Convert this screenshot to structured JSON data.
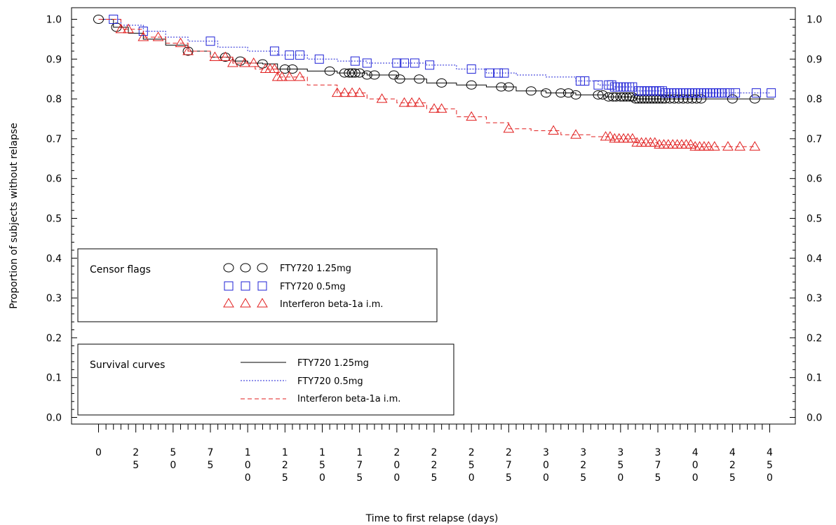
{
  "chart_data": {
    "type": "line",
    "title": "",
    "xlabel": "Time to first relapse (days)",
    "ylabel": "Proportion of subjects without relapse",
    "xlim": [
      -15,
      465
    ],
    "ylim": [
      -0.01,
      1.01
    ],
    "x_ticks": [
      {
        "value": 0,
        "label": "0"
      },
      {
        "value": 25,
        "label": "25"
      },
      {
        "value": 50,
        "label": "50"
      },
      {
        "value": 75,
        "label": "75"
      },
      {
        "value": 100,
        "label": "100"
      },
      {
        "value": 125,
        "label": "125"
      },
      {
        "value": 150,
        "label": "150"
      },
      {
        "value": 175,
        "label": "175"
      },
      {
        "value": 200,
        "label": "200"
      },
      {
        "value": 225,
        "label": "225"
      },
      {
        "value": 250,
        "label": "250"
      },
      {
        "value": 275,
        "label": "275"
      },
      {
        "value": 300,
        "label": "300"
      },
      {
        "value": 325,
        "label": "325"
      },
      {
        "value": 350,
        "label": "350"
      },
      {
        "value": 375,
        "label": "375"
      },
      {
        "value": 400,
        "label": "400"
      },
      {
        "value": 425,
        "label": "425"
      },
      {
        "value": 450,
        "label": "450"
      }
    ],
    "y_ticks": [
      {
        "value": 0.0,
        "label": "0.0"
      },
      {
        "value": 0.1,
        "label": "0.1"
      },
      {
        "value": 0.2,
        "label": "0.2"
      },
      {
        "value": 0.3,
        "label": "0.3"
      },
      {
        "value": 0.4,
        "label": "0.4"
      },
      {
        "value": 0.5,
        "label": "0.5"
      },
      {
        "value": 0.6,
        "label": "0.6"
      },
      {
        "value": 0.7,
        "label": "0.7"
      },
      {
        "value": 0.8,
        "label": "0.8"
      },
      {
        "value": 0.9,
        "label": "0.9"
      },
      {
        "value": 1.0,
        "label": "1.0"
      }
    ],
    "series": [
      {
        "name": "FTY720 1.25mg",
        "color": "#000000",
        "line": "solid",
        "marker": "circle",
        "points": [
          [
            0,
            1.0
          ],
          [
            10,
            0.98
          ],
          [
            20,
            0.965
          ],
          [
            30,
            0.95
          ],
          [
            45,
            0.935
          ],
          [
            60,
            0.92
          ],
          [
            75,
            0.905
          ],
          [
            90,
            0.895
          ],
          [
            100,
            0.89
          ],
          [
            110,
            0.888
          ],
          [
            120,
            0.875
          ],
          [
            140,
            0.87
          ],
          [
            160,
            0.865
          ],
          [
            180,
            0.86
          ],
          [
            200,
            0.85
          ],
          [
            220,
            0.84
          ],
          [
            240,
            0.835
          ],
          [
            260,
            0.83
          ],
          [
            280,
            0.82
          ],
          [
            300,
            0.815
          ],
          [
            320,
            0.81
          ],
          [
            340,
            0.805
          ],
          [
            360,
            0.8
          ],
          [
            380,
            0.8
          ],
          [
            400,
            0.8
          ],
          [
            420,
            0.8
          ],
          [
            440,
            0.8
          ],
          [
            453,
            0.8
          ]
        ],
        "censor_x": [
          0,
          12,
          60,
          85,
          95,
          110,
          125,
          130,
          155,
          165,
          168,
          170,
          172,
          175,
          180,
          185,
          198,
          202,
          215,
          230,
          250,
          270,
          275,
          290,
          300,
          310,
          315,
          320,
          335,
          338,
          342,
          345,
          347,
          350,
          352,
          354,
          356,
          358,
          360,
          362,
          364,
          366,
          368,
          370,
          372,
          374,
          376,
          378,
          380,
          383,
          386,
          389,
          392,
          395,
          398,
          401,
          404,
          425,
          440
        ]
      },
      {
        "name": "FTY720 0.5mg",
        "color": "#1f22d6",
        "line": "dotted",
        "marker": "square",
        "points": [
          [
            0,
            1.0
          ],
          [
            15,
            0.985
          ],
          [
            30,
            0.97
          ],
          [
            45,
            0.955
          ],
          [
            60,
            0.945
          ],
          [
            80,
            0.93
          ],
          [
            100,
            0.92
          ],
          [
            120,
            0.91
          ],
          [
            140,
            0.9
          ],
          [
            160,
            0.895
          ],
          [
            180,
            0.89
          ],
          [
            200,
            0.89
          ],
          [
            220,
            0.885
          ],
          [
            240,
            0.875
          ],
          [
            260,
            0.865
          ],
          [
            280,
            0.86
          ],
          [
            300,
            0.855
          ],
          [
            320,
            0.845
          ],
          [
            335,
            0.835
          ],
          [
            345,
            0.83
          ],
          [
            360,
            0.82
          ],
          [
            380,
            0.815
          ],
          [
            400,
            0.815
          ],
          [
            420,
            0.815
          ],
          [
            450,
            0.815
          ]
        ],
        "censor_x": [
          10,
          30,
          75,
          118,
          128,
          135,
          148,
          172,
          180,
          200,
          205,
          212,
          222,
          250,
          262,
          268,
          272,
          323,
          326,
          335,
          342,
          344,
          346,
          348,
          350,
          352,
          354,
          356,
          358,
          362,
          364,
          366,
          368,
          370,
          372,
          374,
          376,
          378,
          380,
          382,
          384,
          386,
          388,
          390,
          392,
          394,
          396,
          398,
          400,
          402,
          404,
          406,
          408,
          410,
          412,
          414,
          416,
          418,
          420,
          423,
          427,
          441,
          451
        ]
      },
      {
        "name": "Interferon beta-1a i.m.",
        "color": "#e11f1f",
        "line": "dashed",
        "marker": "triangle",
        "points": [
          [
            0,
            1.0
          ],
          [
            15,
            0.975
          ],
          [
            30,
            0.955
          ],
          [
            45,
            0.94
          ],
          [
            60,
            0.92
          ],
          [
            75,
            0.905
          ],
          [
            90,
            0.89
          ],
          [
            105,
            0.875
          ],
          [
            120,
            0.855
          ],
          [
            140,
            0.835
          ],
          [
            160,
            0.815
          ],
          [
            180,
            0.8
          ],
          [
            200,
            0.79
          ],
          [
            220,
            0.775
          ],
          [
            240,
            0.755
          ],
          [
            260,
            0.74
          ],
          [
            275,
            0.725
          ],
          [
            290,
            0.72
          ],
          [
            310,
            0.71
          ],
          [
            330,
            0.705
          ],
          [
            345,
            0.7
          ],
          [
            360,
            0.69
          ],
          [
            375,
            0.685
          ],
          [
            400,
            0.68
          ],
          [
            430,
            0.68
          ],
          [
            440,
            0.68
          ]
        ],
        "censor_x": [
          15,
          20,
          30,
          40,
          55,
          60,
          78,
          85,
          90,
          98,
          104,
          112,
          115,
          118,
          120,
          123,
          128,
          135,
          160,
          165,
          170,
          175,
          190,
          205,
          210,
          215,
          225,
          230,
          250,
          275,
          305,
          320,
          340,
          343,
          346,
          349,
          352,
          355,
          358,
          361,
          364,
          367,
          370,
          373,
          376,
          379,
          382,
          385,
          388,
          391,
          394,
          397,
          400,
          403,
          406,
          409,
          413,
          422,
          430,
          440
        ]
      }
    ],
    "legend_censor": {
      "title": "Censor flags",
      "entries": [
        "FTY720 1.25mg",
        "FTY720 0.5mg",
        "Interferon beta-1a i.m."
      ]
    },
    "legend_curves": {
      "title": "Survival curves",
      "entries": [
        "FTY720 1.25mg",
        "FTY720 0.5mg",
        "Interferon beta-1a i.m."
      ]
    }
  }
}
